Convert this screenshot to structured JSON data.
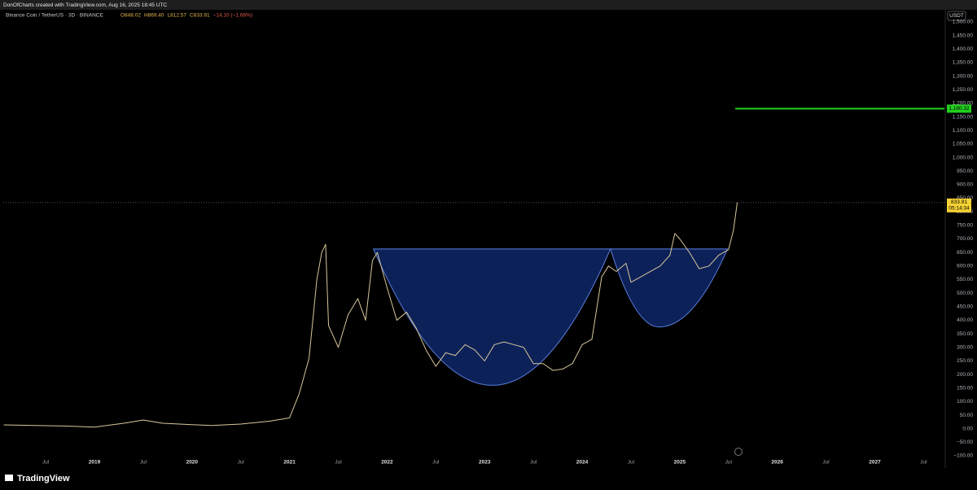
{
  "header": {
    "credit": "DonOfCharts created with TradingView.com, Aug 16, 2025 18:45 UTC"
  },
  "footer": {
    "brand": "TradingView"
  },
  "chart_data": {
    "type": "line",
    "symbol": "Binance Coin / TetherUS · 3D · BINANCE",
    "ohlc": [
      "O848.02",
      "H869.40",
      "L812.57",
      "C833.91",
      "−14.10 (−1.66%)"
    ],
    "currency": "USDT",
    "grid": false,
    "x": [
      2018.07,
      2018.4,
      2018.7,
      2019.0,
      2019.3,
      2019.5,
      2019.7,
      2020.0,
      2020.2,
      2020.5,
      2020.8,
      2021.0,
      2021.1,
      2021.2,
      2021.28,
      2021.33,
      2021.37,
      2021.4,
      2021.5,
      2021.6,
      2021.7,
      2021.78,
      2021.85,
      2021.9,
      2022.0,
      2022.1,
      2022.2,
      2022.3,
      2022.4,
      2022.5,
      2022.6,
      2022.7,
      2022.8,
      2022.9,
      2023.0,
      2023.1,
      2023.2,
      2023.3,
      2023.4,
      2023.5,
      2023.6,
      2023.7,
      2023.8,
      2023.9,
      2024.0,
      2024.1,
      2024.2,
      2024.27,
      2024.35,
      2024.45,
      2024.5,
      2024.6,
      2024.7,
      2024.8,
      2024.9,
      2024.95,
      2025.0,
      2025.1,
      2025.2,
      2025.3,
      2025.4,
      2025.5,
      2025.55,
      2025.59
    ],
    "series": [
      {
        "name": "BNBUSDT",
        "color": "#d6c79a",
        "values": [
          14,
          12,
          10,
          6,
          20,
          32,
          20,
          15,
          12,
          17,
          28,
          40,
          130,
          260,
          550,
          650,
          680,
          380,
          300,
          420,
          480,
          400,
          620,
          650,
          520,
          400,
          430,
          370,
          290,
          230,
          280,
          270,
          310,
          290,
          250,
          310,
          320,
          310,
          300,
          240,
          240,
          215,
          220,
          240,
          310,
          330,
          560,
          600,
          580,
          610,
          540,
          560,
          580,
          600,
          640,
          720,
          700,
          650,
          590,
          600,
          640,
          660,
          730,
          833.91
        ]
      }
    ],
    "drawings": [
      {
        "color": "#5b7fe0",
        "fill": "#0d2159",
        "x": [
          2021.86,
          2023.08,
          2024.29
        ],
        "y": [
          663,
          160,
          663
        ]
      },
      {
        "color": "#5b7fe0",
        "fill": "#0d2159",
        "x": [
          2024.29,
          2024.79,
          2025.49
        ],
        "y": [
          663,
          375,
          663
        ]
      }
    ],
    "hline": {
      "value": 1180.32,
      "label": "1,180.32",
      "x_start": 2025.57,
      "color": "#22d01e"
    },
    "price_label": {
      "value": 833.91,
      "label": "833.91",
      "countdown": "05:14:34",
      "color": "#f5d233"
    },
    "xlim": [
      2018.065,
      2027.714
    ],
    "xticks": [
      {
        "value": 2018.5,
        "label": "Jul"
      },
      {
        "value": 2019,
        "label": "2019"
      },
      {
        "value": 2019.5,
        "label": "Jul"
      },
      {
        "value": 2020,
        "label": "2020"
      },
      {
        "value": 2020.5,
        "label": "Jul"
      },
      {
        "value": 2021,
        "label": "2021"
      },
      {
        "value": 2021.5,
        "label": "Jul"
      },
      {
        "value": 2022,
        "label": "2022"
      },
      {
        "value": 2022.5,
        "label": "Jul"
      },
      {
        "value": 2023,
        "label": "2023"
      },
      {
        "value": 2023.5,
        "label": "Jul"
      },
      {
        "value": 2024,
        "label": "2024"
      },
      {
        "value": 2024.5,
        "label": "Jul"
      },
      {
        "value": 2025,
        "label": "2025"
      },
      {
        "value": 2025.5,
        "label": "Jul"
      },
      {
        "value": 2026,
        "label": "2026"
      },
      {
        "value": 2026.5,
        "label": "Jul"
      },
      {
        "value": 2027,
        "label": "2027"
      },
      {
        "value": 2027.5,
        "label": "Jul"
      }
    ],
    "ylim": [
      -130,
      1530
    ],
    "yticks": [
      {
        "value": -100,
        "label": "−100.00"
      },
      {
        "value": -50,
        "label": "−50.00"
      },
      {
        "value": 0,
        "label": "0.00"
      },
      {
        "value": 50,
        "label": "50.00"
      },
      {
        "value": 100,
        "label": "100.00"
      },
      {
        "value": 150,
        "label": "150.00"
      },
      {
        "value": 200,
        "label": "200.00"
      },
      {
        "value": 250,
        "label": "250.00"
      },
      {
        "value": 300,
        "label": "300.00"
      },
      {
        "value": 350,
        "label": "350.00"
      },
      {
        "value": 400,
        "label": "400.00"
      },
      {
        "value": 450,
        "label": "450.00"
      },
      {
        "value": 500,
        "label": "500.00"
      },
      {
        "value": 550,
        "label": "550.00"
      },
      {
        "value": 600,
        "label": "600.00"
      },
      {
        "value": 650,
        "label": "650.00"
      },
      {
        "value": 700,
        "label": "700.00"
      },
      {
        "value": 750,
        "label": "750.00"
      },
      {
        "value": 800,
        "label": "800.00"
      },
      {
        "value": 850,
        "label": "850.00"
      },
      {
        "value": 900,
        "label": "900.00"
      },
      {
        "value": 950,
        "label": "950.00"
      },
      {
        "value": 1000,
        "label": "1,000.00"
      },
      {
        "value": 1050,
        "label": "1,050.00"
      },
      {
        "value": 1100,
        "label": "1,100.00"
      },
      {
        "value": 1150,
        "label": "1,150.00"
      },
      {
        "value": 1200,
        "label": "1,200.00"
      },
      {
        "value": 1250,
        "label": "1,250.00"
      },
      {
        "value": 1300,
        "label": "1,300.00"
      },
      {
        "value": 1350,
        "label": "1,350.00"
      },
      {
        "value": 1400,
        "label": "1,400.00"
      },
      {
        "value": 1450,
        "label": "1,450.00"
      },
      {
        "value": 1500,
        "label": "1,500.00"
      }
    ]
  }
}
